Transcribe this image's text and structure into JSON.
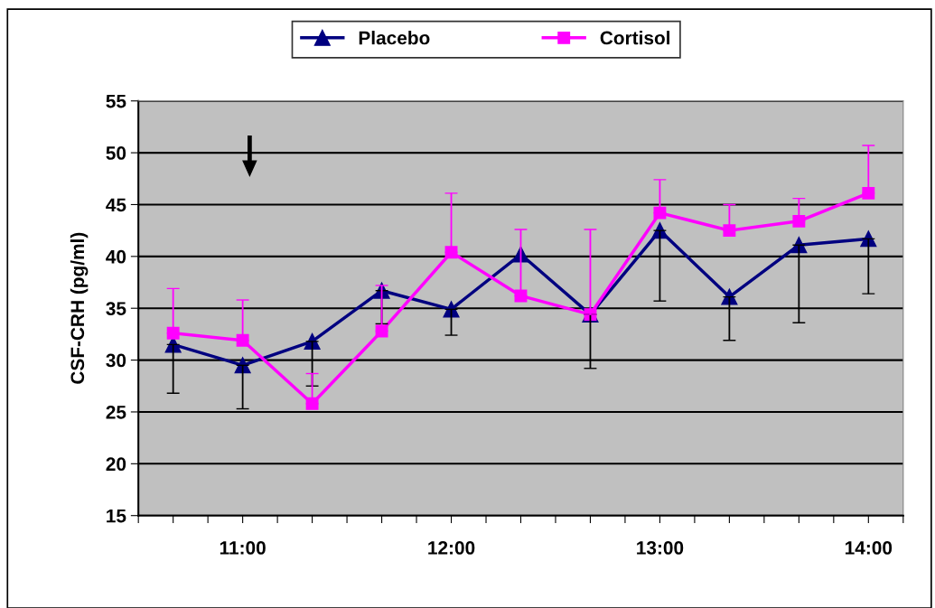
{
  "chart_data": {
    "type": "line",
    "ylabel": "CSF-CRH (pg/ml)",
    "x": [
      10.6667,
      11,
      11.3333,
      11.6667,
      12,
      12.3333,
      12.6667,
      13,
      13.3333,
      13.6667,
      14
    ],
    "series": [
      {
        "name": "Placebo",
        "color": "#000080",
        "marker": "triangle",
        "values": [
          31.5,
          29.5,
          31.8,
          36.7,
          34.9,
          40.2,
          34.4,
          42.5,
          36.1,
          41.1,
          41.7
        ],
        "errors": [
          [
            26.8,
            31.5
          ],
          [
            25.3,
            29.5
          ],
          [
            27.5,
            31.8
          ],
          [
            33.5,
            36.7
          ],
          [
            32.4,
            34.9
          ],
          null,
          [
            29.2,
            34.4
          ],
          [
            35.7,
            42.5
          ],
          [
            31.9,
            36.1
          ],
          [
            33.6,
            41.1
          ],
          [
            36.4,
            41.7
          ]
        ]
      },
      {
        "name": "Cortisol",
        "color": "#ff00ff",
        "marker": "square",
        "values": [
          32.6,
          31.9,
          25.8,
          32.8,
          40.4,
          36.2,
          34.4,
          44.2,
          42.5,
          43.4,
          46.1
        ],
        "errors": [
          [
            32.6,
            36.9
          ],
          [
            31.9,
            35.8
          ],
          [
            25.8,
            28.7
          ],
          [
            32.8,
            37.2
          ],
          [
            40.4,
            46.1
          ],
          [
            36.2,
            42.6
          ],
          [
            34.4,
            42.6
          ],
          [
            44.2,
            47.4
          ],
          [
            42.5,
            45.0
          ],
          [
            43.4,
            45.6
          ],
          [
            46.1,
            50.7
          ]
        ]
      }
    ],
    "xlim": [
      10.5,
      14.1667
    ],
    "xticks": [
      {
        "value": 10.5,
        "label": null
      },
      {
        "value": 10.6667,
        "label": null
      },
      {
        "value": 10.8333,
        "label": null
      },
      {
        "value": 11,
        "label": "11:00"
      },
      {
        "value": 11.1667,
        "label": null
      },
      {
        "value": 11.3333,
        "label": null
      },
      {
        "value": 11.5,
        "label": null
      },
      {
        "value": 11.6667,
        "label": null
      },
      {
        "value": 11.8333,
        "label": null
      },
      {
        "value": 12,
        "label": "12:00"
      },
      {
        "value": 12.1667,
        "label": null
      },
      {
        "value": 12.3333,
        "label": null
      },
      {
        "value": 12.5,
        "label": null
      },
      {
        "value": 12.6667,
        "label": null
      },
      {
        "value": 12.8333,
        "label": null
      },
      {
        "value": 13,
        "label": "13:00"
      },
      {
        "value": 13.1667,
        "label": null
      },
      {
        "value": 13.3333,
        "label": null
      },
      {
        "value": 13.5,
        "label": null
      },
      {
        "value": 13.6667,
        "label": null
      },
      {
        "value": 13.8333,
        "label": null
      },
      {
        "value": 14,
        "label": "14:00"
      },
      {
        "value": 14.1667,
        "label": null
      }
    ],
    "ylim": [
      15,
      55
    ],
    "yticks": [
      15,
      20,
      25,
      30,
      35,
      40,
      45,
      50,
      55
    ],
    "grid": "y",
    "legend": "top",
    "line_style": "solid"
  }
}
